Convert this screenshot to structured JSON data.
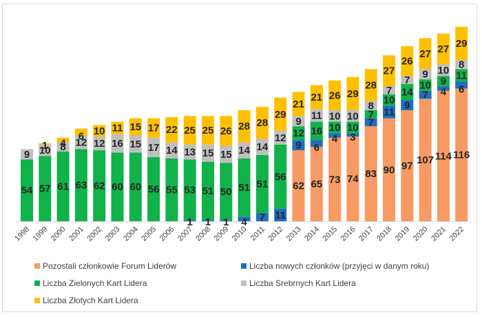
{
  "chart_data": {
    "type": "bar",
    "stacked": true,
    "title": "",
    "xlabel": "",
    "ylabel": "",
    "ylim": [
      0,
      175
    ],
    "grid": false,
    "legend_position": "bottom",
    "categories": [
      "1998",
      "1999",
      "2000",
      "2001",
      "2002",
      "2003",
      "2004",
      "2005",
      "2006",
      "2007",
      "2008",
      "2009",
      "2010",
      "2011",
      "2012",
      "2013",
      "2014",
      "2015",
      "2016",
      "2017",
      "2018",
      "2019",
      "2020",
      "2021",
      "2022"
    ],
    "series": [
      {
        "name": "Pozostali członkowie Forum Liderów",
        "color": "#F79A63",
        "values": [
          0,
          0,
          0,
          0,
          0,
          0,
          0,
          0,
          0,
          0,
          0,
          0,
          0,
          0,
          0,
          62,
          65,
          73,
          74,
          83,
          90,
          97,
          107,
          114,
          116
        ]
      },
      {
        "name": "Liczba nowych członków (przyjęci w danym roku)",
        "color": "#1F6EC2",
        "values": [
          0,
          0,
          0,
          0,
          0,
          0,
          0,
          0,
          0,
          1,
          1,
          1,
          4,
          7,
          11,
          9,
          6,
          4,
          3,
          7,
          11,
          9,
          7,
          4,
          6
        ]
      },
      {
        "name": "Liczba Zielonych Kart Lidera",
        "color": "#10B24A",
        "values": [
          54,
          57,
          61,
          63,
          62,
          60,
          60,
          56,
          55,
          53,
          51,
          50,
          51,
          51,
          56,
          12,
          16,
          10,
          10,
          7,
          10,
          14,
          10,
          9,
          11
        ]
      },
      {
        "name": "Liczba Srebrnych Kart Lidera",
        "color": "#BFBFBF",
        "values": [
          9,
          10,
          8,
          12,
          12,
          16,
          15,
          17,
          14,
          13,
          15,
          15,
          14,
          14,
          12,
          9,
          11,
          10,
          10,
          8,
          7,
          7,
          9,
          10,
          8
        ]
      },
      {
        "name": "Liczba Złotych Kart Lidera",
        "color": "#FFC000",
        "values": [
          0,
          1,
          4,
          6,
          10,
          11,
          15,
          17,
          22,
          25,
          25,
          26,
          28,
          28,
          29,
          21,
          21,
          26,
          29,
          28,
          27,
          26,
          27,
          27,
          29
        ]
      }
    ]
  },
  "legend": [
    {
      "label": "Pozostali członkowie Forum Liderów",
      "color": "#F79A63"
    },
    {
      "label": "Liczba nowych członków (przyjęci w danym roku)",
      "color": "#1F6EC2"
    },
    {
      "label": "Liczba Zielonych Kart Lidera",
      "color": "#10B24A"
    },
    {
      "label": "Liczba Srebrnych Kart Lidera",
      "color": "#BFBFBF"
    },
    {
      "label": "Liczba Złotych Kart Lidera",
      "color": "#FFC000"
    }
  ]
}
